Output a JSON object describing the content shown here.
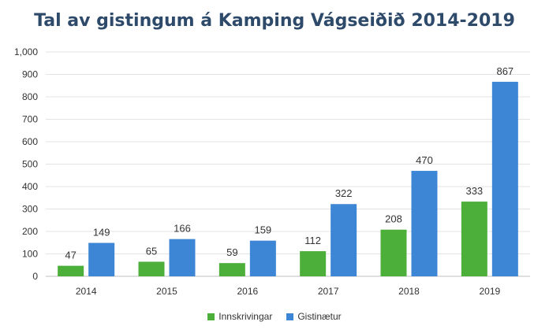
{
  "chart_data": {
    "type": "bar",
    "title": "Tal av gistingum á Kamping Vágseiðið 2014-2019",
    "categories": [
      "2014",
      "2015",
      "2016",
      "2017",
      "2018",
      "2019"
    ],
    "series": [
      {
        "name": "Innskrivingar",
        "values": [
          47,
          65,
          59,
          112,
          208,
          333
        ],
        "color": "#4caf3a"
      },
      {
        "name": "Gistinætur",
        "values": [
          149,
          166,
          159,
          322,
          470,
          867
        ],
        "color": "#3d86d6"
      }
    ],
    "ylim": [
      0,
      1000
    ],
    "yticks": [
      "0",
      "100",
      "200",
      "300",
      "400",
      "500",
      "600",
      "700",
      "800",
      "900",
      "1,000"
    ],
    "grid": true,
    "legend_position": "bottom"
  }
}
